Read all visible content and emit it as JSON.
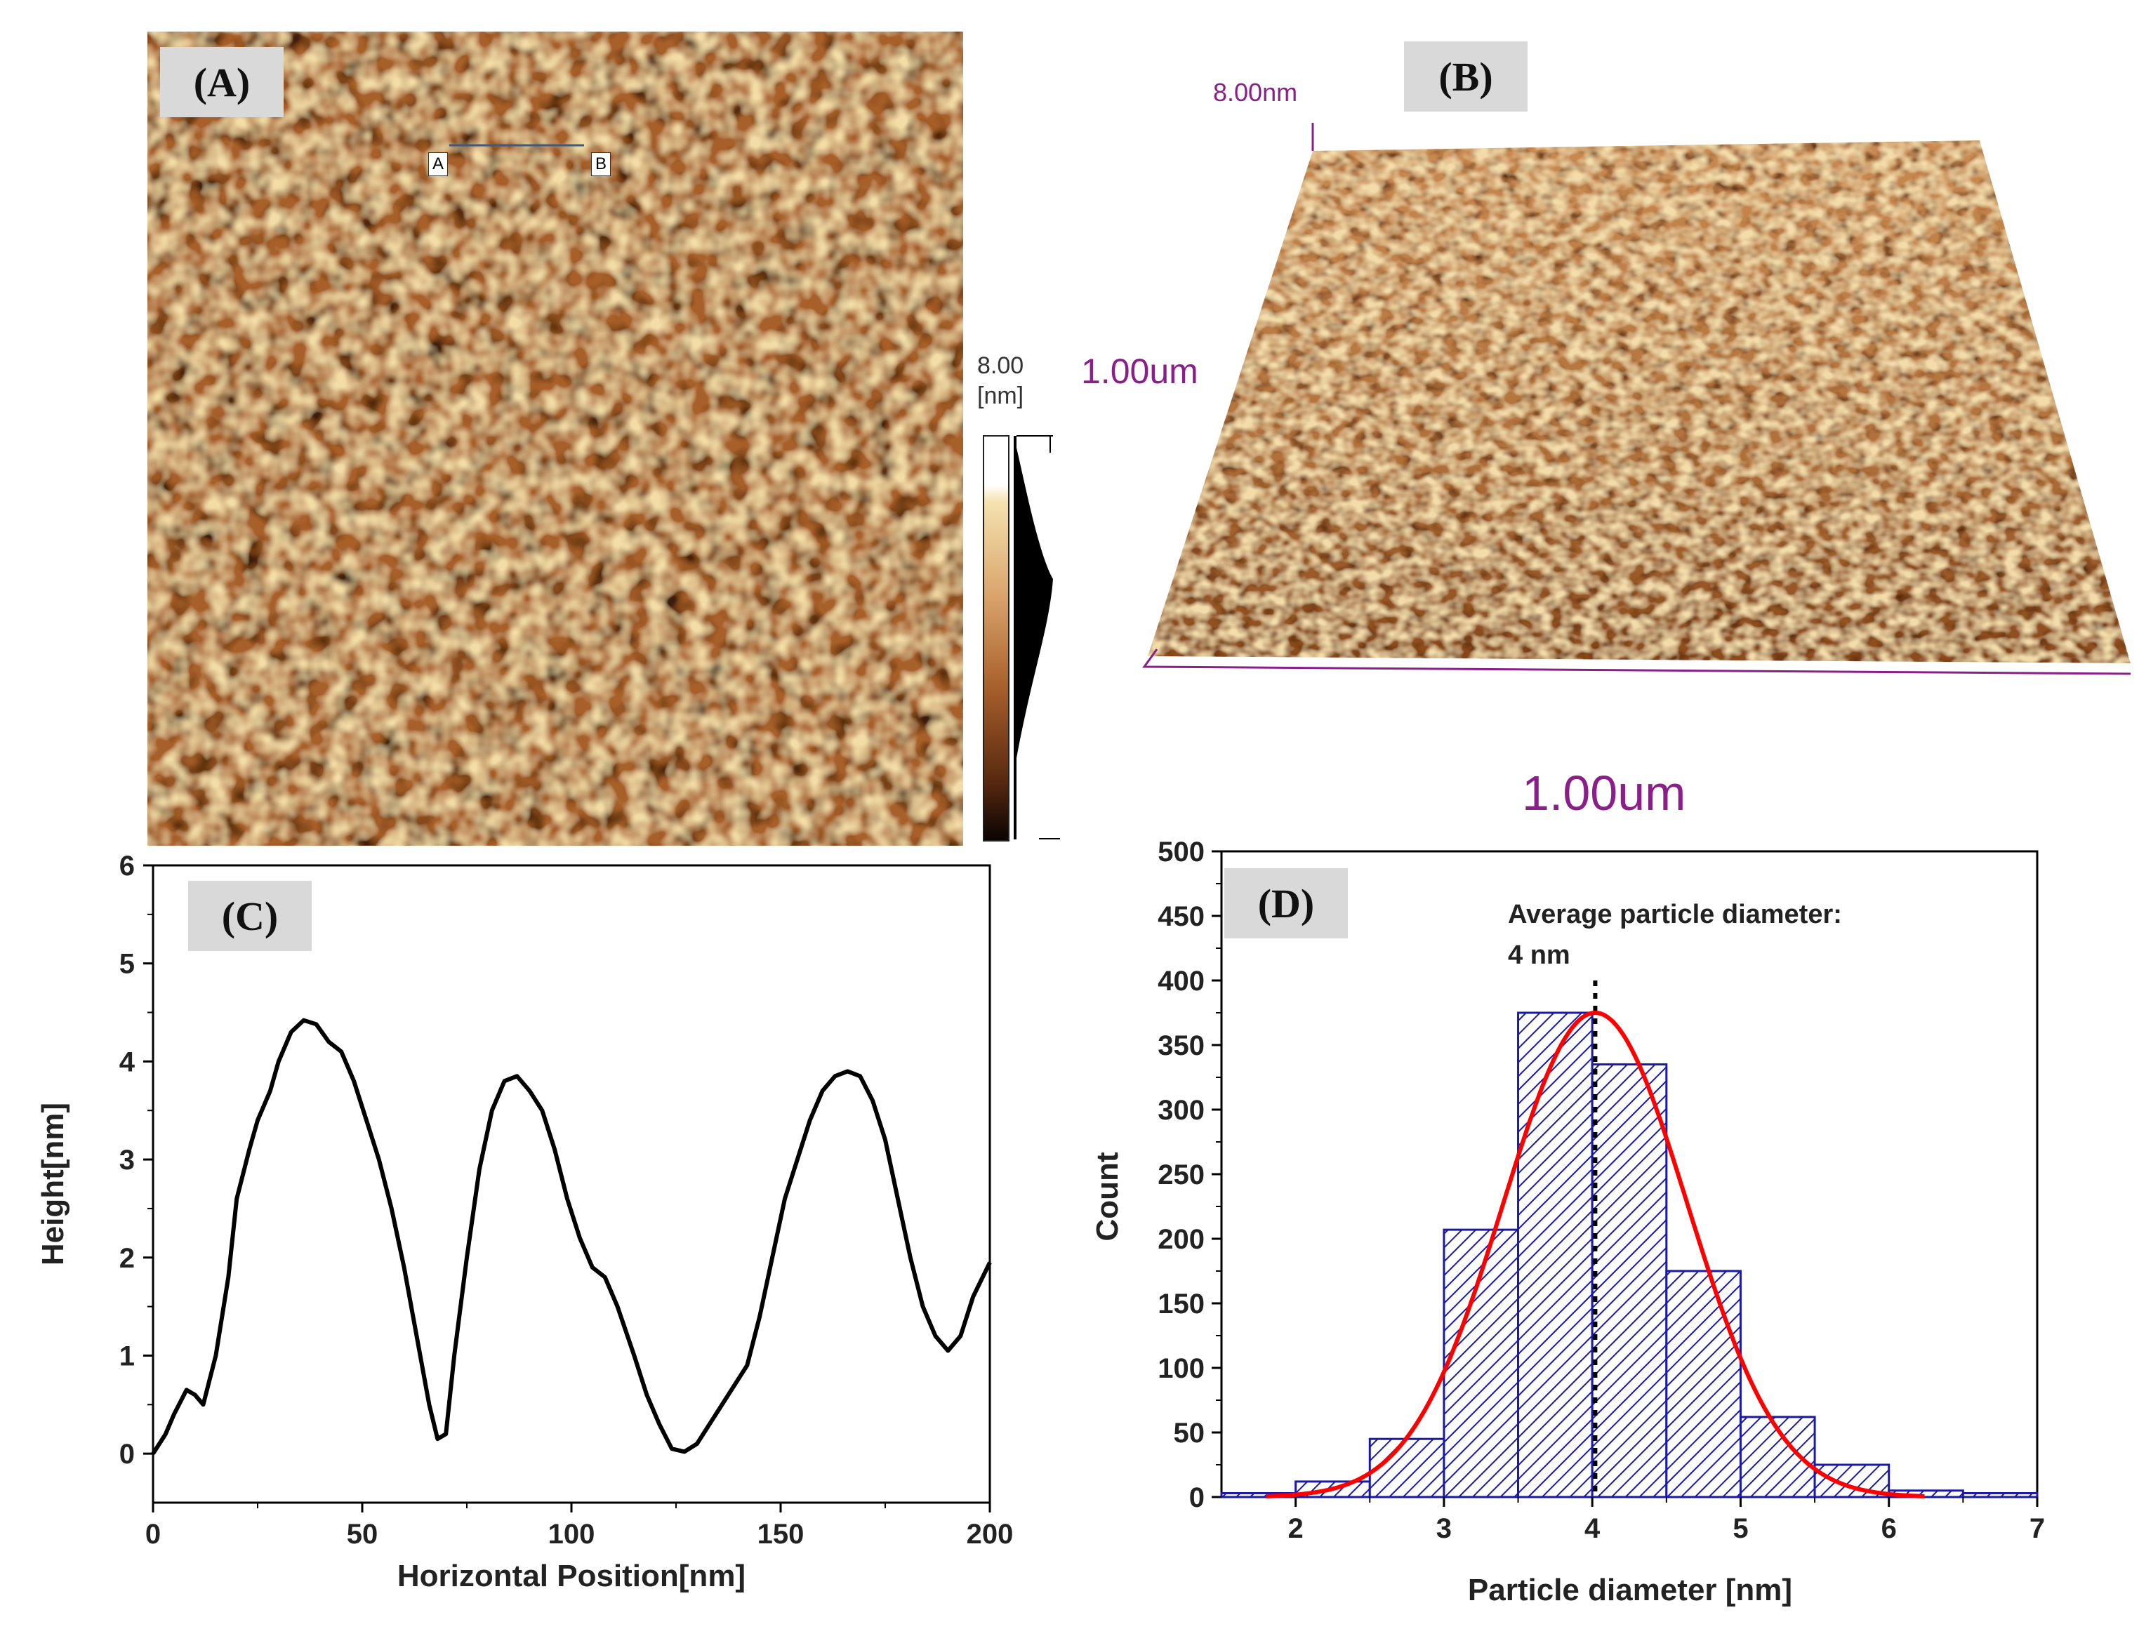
{
  "panel_a": {
    "label": "(A)",
    "marker_a": "A",
    "marker_b": "B",
    "scale_value": "8.00",
    "scale_unit": "[nm]",
    "colors": {
      "base": "#a8602c",
      "dark": "#3a1a08",
      "light": "#f0d9a0",
      "mid": "#c9844a"
    }
  },
  "panel_b": {
    "label": "(B)",
    "z_label": "8.00nm",
    "y_label": "1.00um",
    "x_label": "1.00um",
    "axis_color": "#8a1f8a"
  },
  "chart_data": [
    {
      "id": "C",
      "type": "line",
      "label": "(C)",
      "xlabel": "Horizontal Position[nm]",
      "ylabel": "Height[nm]",
      "xlim": [
        0,
        200
      ],
      "ylim": [
        -0.5,
        6
      ],
      "xticks": [
        "0",
        "50",
        "100",
        "150",
        "200"
      ],
      "yticks": [
        "0",
        "1",
        "2",
        "3",
        "4",
        "5",
        "6"
      ],
      "x": [
        0,
        3,
        5,
        8,
        10,
        12,
        15,
        18,
        20,
        23,
        25,
        28,
        30,
        33,
        36,
        39,
        42,
        45,
        48,
        51,
        54,
        57,
        60,
        63,
        66,
        68,
        70,
        72,
        75,
        78,
        81,
        84,
        87,
        90,
        93,
        96,
        99,
        102,
        105,
        108,
        111,
        115,
        118,
        121,
        124,
        127,
        130,
        133,
        136,
        139,
        142,
        145,
        148,
        151,
        154,
        157,
        160,
        163,
        166,
        169,
        172,
        175,
        178,
        181,
        184,
        187,
        190,
        193,
        196,
        200
      ],
      "y": [
        0.0,
        0.2,
        0.4,
        0.65,
        0.6,
        0.5,
        1.0,
        1.8,
        2.6,
        3.1,
        3.4,
        3.7,
        4.0,
        4.3,
        4.42,
        4.38,
        4.2,
        4.1,
        3.8,
        3.4,
        3.0,
        2.5,
        1.9,
        1.2,
        0.5,
        0.15,
        0.2,
        1.0,
        2.0,
        2.9,
        3.5,
        3.8,
        3.85,
        3.7,
        3.5,
        3.1,
        2.6,
        2.2,
        1.9,
        1.8,
        1.5,
        1.0,
        0.6,
        0.3,
        0.05,
        0.02,
        0.1,
        0.3,
        0.5,
        0.7,
        0.9,
        1.4,
        2.0,
        2.6,
        3.0,
        3.4,
        3.7,
        3.85,
        3.9,
        3.85,
        3.6,
        3.2,
        2.6,
        2.0,
        1.5,
        1.2,
        1.05,
        1.2,
        1.6,
        1.95
      ],
      "color": "#000000"
    },
    {
      "id": "D",
      "type": "bar",
      "label": "(D)",
      "xlabel": "Particle diameter [nm]",
      "ylabel": "Count",
      "xlim": [
        1.5,
        7
      ],
      "ylim": [
        0,
        500
      ],
      "xticks": [
        "2",
        "3",
        "4",
        "5",
        "6",
        "7"
      ],
      "yticks": [
        "0",
        "50",
        "100",
        "150",
        "200",
        "250",
        "300",
        "350",
        "400",
        "450",
        "500"
      ],
      "bin_edges": [
        1.5,
        2,
        2.5,
        3,
        3.5,
        4,
        4.5,
        5,
        5.5,
        6,
        6.5,
        7
      ],
      "values": [
        3,
        12,
        45,
        207,
        375,
        335,
        175,
        62,
        25,
        5,
        3
      ],
      "fit": {
        "type": "gaussian",
        "mean": 4.02,
        "sigma": 0.62,
        "amplitude": 375,
        "color": "#ff0000"
      },
      "annotation_line1": "Average particle diameter:",
      "annotation_line2": "4 nm",
      "mean_line_x": 4.02,
      "bar_color": "#1a1aa8"
    }
  ]
}
